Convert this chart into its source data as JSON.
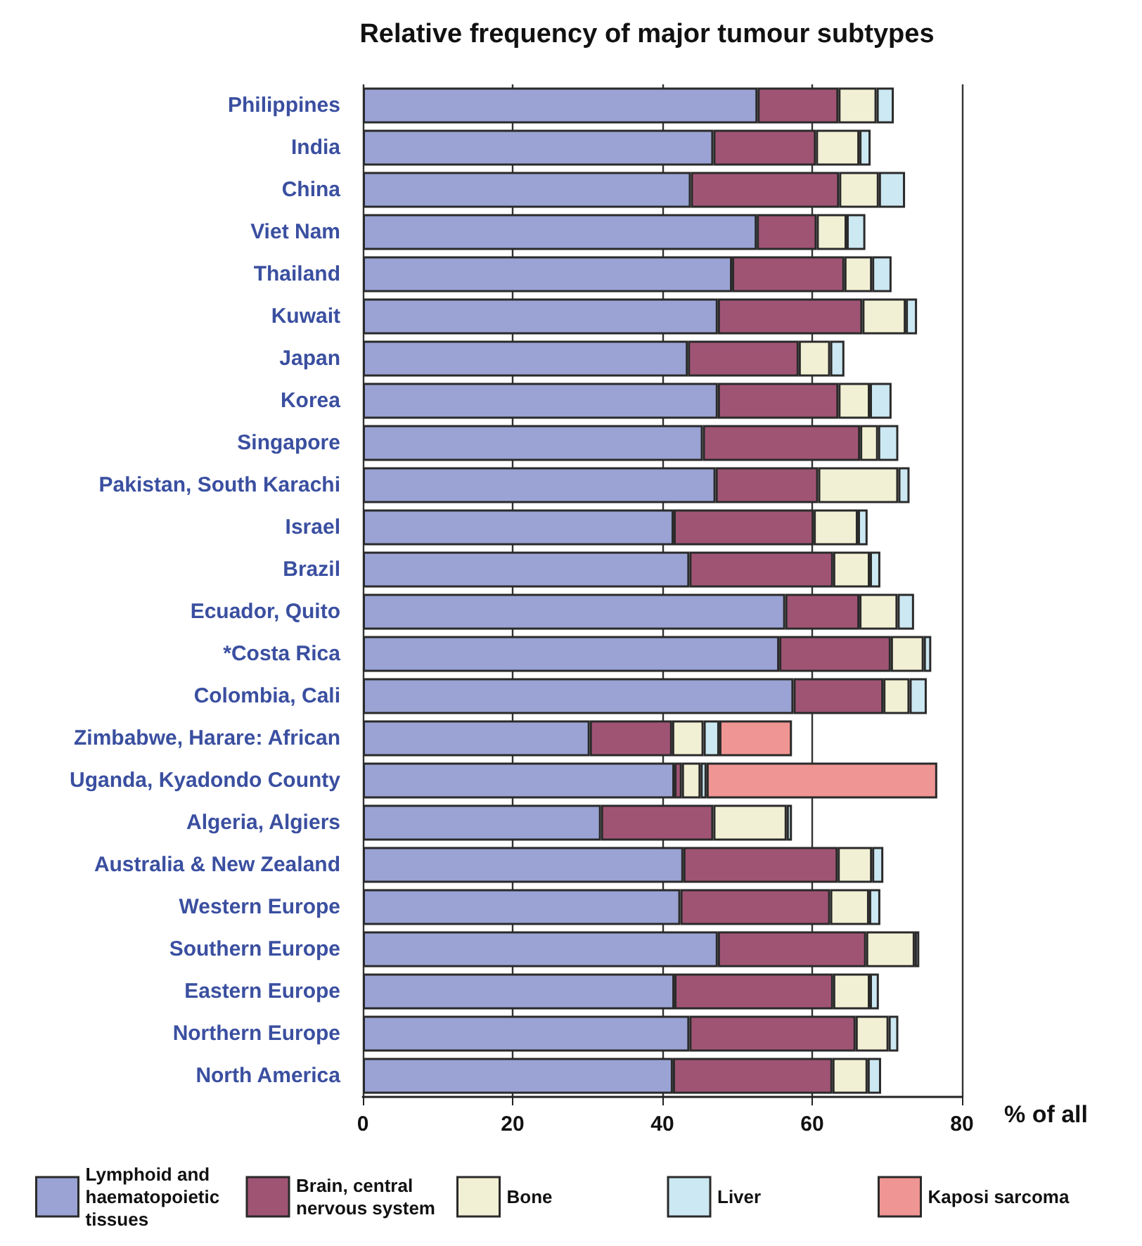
{
  "chart_data": {
    "type": "bar",
    "orientation": "horizontal",
    "stacked": true,
    "title": "Relative frequency of major tumour subtypes",
    "xlabel": "% of all",
    "categories": [
      "Philippines",
      "India",
      "China",
      "Viet Nam",
      "Thailand",
      "Kuwait",
      "Japan",
      "Korea",
      "Singapore",
      "Pakistan, South Karachi",
      "Israel",
      "Brazil",
      "Ecuador, Quito",
      "*Costa Rica",
      "Colombia, Cali",
      "Zimbabwe, Harare: African",
      "Uganda, Kyadondo County",
      "Algeria, Algiers",
      "Australia & New Zealand",
      "Western Europe",
      "Southern Europe",
      "Eastern Europe",
      "Northern Europe",
      "North America"
    ],
    "series": [
      {
        "name": "Lymphoid and haematopoietic tissues",
        "color": "#9aa3d4",
        "values": [
          52.7,
          46.8,
          43.8,
          52.6,
          49.3,
          47.4,
          43.4,
          47.4,
          45.4,
          47.1,
          41.5,
          43.6,
          56.4,
          55.6,
          57.5,
          30.3,
          41.6,
          31.8,
          42.8,
          42.4,
          47.4,
          41.6,
          43.6,
          41.4
        ]
      },
      {
        "name": "Brain, central nervous system",
        "color": "#a05474",
        "values": [
          10.8,
          13.7,
          19.8,
          8.0,
          15.0,
          19.3,
          14.8,
          16.1,
          21.0,
          13.7,
          18.7,
          19.2,
          9.9,
          14.9,
          12.0,
          11.0,
          1.0,
          15.0,
          20.6,
          20.0,
          19.8,
          21.2,
          22.2,
          21.3
        ]
      },
      {
        "name": "Bone",
        "color": "#f2f0d4",
        "values": [
          5.1,
          5.8,
          5.3,
          4.0,
          3.7,
          5.8,
          4.2,
          4.2,
          2.4,
          10.7,
          5.9,
          4.9,
          5.1,
          4.4,
          3.5,
          4.2,
          2.5,
          9.8,
          4.6,
          5.2,
          6.5,
          4.9,
          4.4,
          4.7
        ]
      },
      {
        "name": "Liver",
        "color": "#cce8f2",
        "values": [
          2.3,
          1.5,
          3.5,
          2.5,
          2.6,
          1.5,
          1.9,
          2.9,
          2.7,
          1.5,
          1.3,
          1.4,
          2.2,
          1.0,
          2.3,
          2.1,
          0.8,
          0.7,
          1.5,
          1.5,
          0.6,
          1.2,
          1.3,
          1.8
        ]
      },
      {
        "name": "Kaposi sarcoma",
        "color": "#ef9593",
        "values": [
          null,
          null,
          null,
          null,
          null,
          null,
          null,
          null,
          null,
          null,
          null,
          null,
          null,
          null,
          null,
          9.7,
          30.8,
          null,
          null,
          null,
          null,
          null,
          null,
          null
        ]
      }
    ],
    "xlim": [
      0,
      80
    ],
    "xticks": [
      0,
      20,
      40,
      60,
      80
    ],
    "grid": "x",
    "legend": "bottom"
  }
}
